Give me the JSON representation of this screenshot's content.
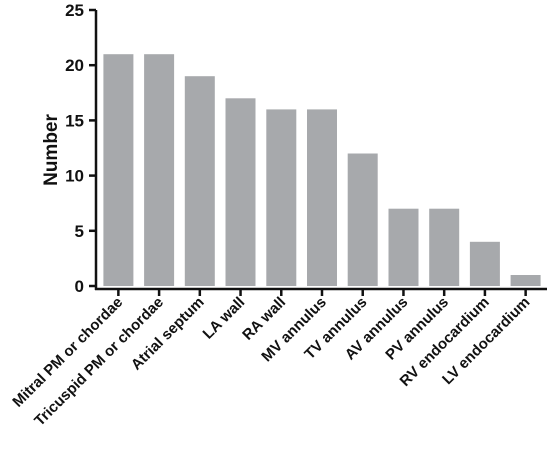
{
  "chart_data": {
    "type": "bar",
    "title": "",
    "xlabel": "",
    "ylabel": "Number",
    "ylim": [
      0,
      25
    ],
    "yticks": [
      0,
      5,
      10,
      15,
      20,
      25
    ],
    "grid": false,
    "bar_color": "#a7a9ac",
    "categories": [
      "Mitral PM or chordae",
      "Tricuspid PM or chordae",
      "Atrial septum",
      "LA wall",
      "RA wall",
      "MV annulus",
      "TV annulus",
      "AV annulus",
      "PV annulus",
      "RV endocardium",
      "LV endocardium"
    ],
    "values": [
      21,
      21,
      19,
      17,
      16,
      16,
      12,
      7,
      7,
      4,
      1
    ]
  }
}
